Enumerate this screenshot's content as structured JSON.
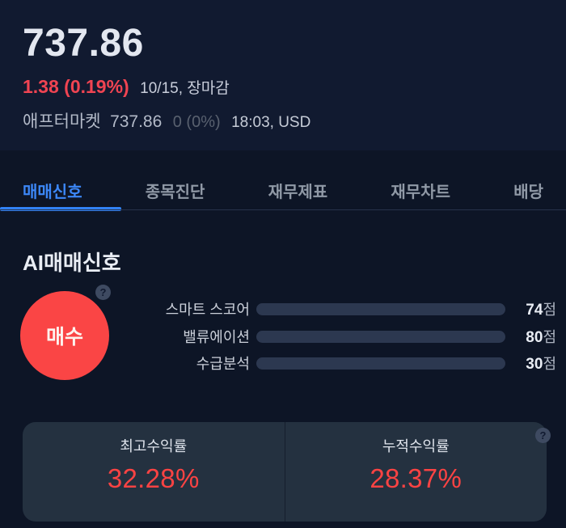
{
  "header": {
    "price": "737.86",
    "change": "1.38 (0.19%)",
    "change_meta": "10/15, 장마감",
    "aftermarket": {
      "label": "애프터마켓",
      "price": "737.86",
      "change": "0 (0%)",
      "meta": "18:03, USD"
    }
  },
  "tabs": [
    {
      "label": "매매신호",
      "active": true
    },
    {
      "label": "종목진단",
      "active": false
    },
    {
      "label": "재무제표",
      "active": false
    },
    {
      "label": "재무차트",
      "active": false
    },
    {
      "label": "배당",
      "active": false
    }
  ],
  "ai": {
    "title": "AI매매신호",
    "signal": "매수",
    "help_icon": "?",
    "scores": [
      {
        "label": "스마트 스코어",
        "value": 74,
        "unit": "점",
        "max": 100,
        "color": "#1793f4"
      },
      {
        "label": "밸류에이션",
        "value": 80,
        "unit": "점",
        "max": 100,
        "color": "#1b90bd"
      },
      {
        "label": "수급분석",
        "value": 30,
        "unit": "점",
        "max": 100,
        "color": "#18bfb8"
      }
    ]
  },
  "returns": {
    "help_icon": "?",
    "cells": [
      {
        "label": "최고수익률",
        "value": "32.28%"
      },
      {
        "label": "누적수익률",
        "value": "28.37%"
      }
    ]
  },
  "colors": {
    "accent_blue": "#3182f6",
    "rise_red": "#f04452",
    "buy_signal_red": "#fa4545",
    "return_red": "#fb4343",
    "header_bg": "#111a30",
    "page_bg": "#0d1526",
    "card_bg": "#243140",
    "track_bg": "#2c3850"
  }
}
